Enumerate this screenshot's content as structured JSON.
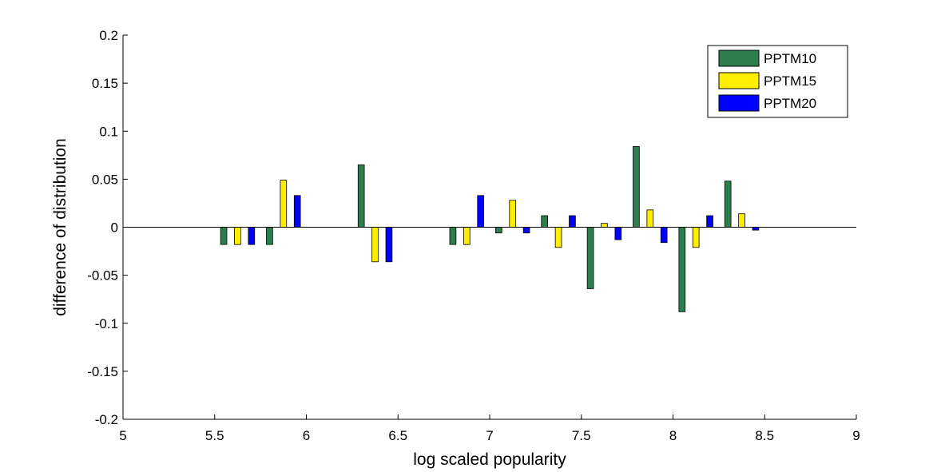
{
  "chart_data": {
    "type": "bar",
    "xlabel": "log scaled popularity",
    "ylabel": "difference of distribution",
    "xlim": [
      5,
      9
    ],
    "ylim": [
      -0.2,
      0.2
    ],
    "x_ticks": [
      "5",
      "5.5",
      "6",
      "6.5",
      "7",
      "7.5",
      "8",
      "8.5",
      "9"
    ],
    "y_ticks": [
      "0.2",
      "0.15",
      "0.1",
      "0.05",
      "0",
      "-0.05",
      "-0.1",
      "-0.15",
      "-0.2"
    ],
    "legend_position": "top-right",
    "grid": false,
    "x": [
      5.625,
      5.875,
      6.375,
      6.875,
      7.125,
      7.375,
      7.625,
      7.875,
      8.125,
      8.375
    ],
    "series": [
      {
        "name": "PPTM10",
        "color": "#2e7d4f",
        "values": [
          -0.018,
          -0.018,
          0.065,
          -0.018,
          -0.006,
          0.012,
          -0.064,
          0.084,
          -0.088,
          0.048
        ]
      },
      {
        "name": "PPTM15",
        "color": "#ffee00",
        "values": [
          -0.018,
          0.049,
          -0.036,
          -0.018,
          0.028,
          -0.021,
          0.004,
          0.018,
          -0.021,
          0.014
        ]
      },
      {
        "name": "PPTM20",
        "color": "#0000ff",
        "values": [
          -0.018,
          0.033,
          -0.036,
          0.033,
          -0.006,
          0.012,
          -0.013,
          -0.016,
          0.012,
          -0.003
        ]
      }
    ]
  }
}
